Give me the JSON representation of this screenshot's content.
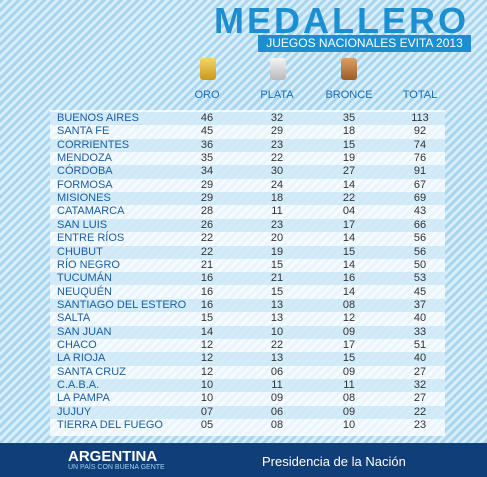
{
  "header": {
    "title": "MEDALLERO",
    "subtitle": "JUEGOS NACIONALES EVITA 2013"
  },
  "table": {
    "columns": [
      "ORO",
      "PLATA",
      "BRONCE",
      "TOTAL"
    ],
    "rows": [
      [
        "BUENOS AIRES",
        "46",
        "32",
        "35",
        "113"
      ],
      [
        "SANTA FE",
        "45",
        "29",
        "18",
        "92"
      ],
      [
        "CORRIENTES",
        "36",
        "23",
        "15",
        "74"
      ],
      [
        "MENDOZA",
        "35",
        "22",
        "19",
        "76"
      ],
      [
        "CÓRDOBA",
        "34",
        "30",
        "27",
        "91"
      ],
      [
        "FORMOSA",
        "29",
        "24",
        "14",
        "67"
      ],
      [
        "MISIONES",
        "29",
        "18",
        "22",
        "69"
      ],
      [
        "CATAMARCA",
        "28",
        "11",
        "04",
        "43"
      ],
      [
        "SAN LUIS",
        "26",
        "23",
        "17",
        "66"
      ],
      [
        "ENTRE RÍOS",
        "22",
        "20",
        "14",
        "56"
      ],
      [
        "CHUBUT",
        "22",
        "19",
        "15",
        "56"
      ],
      [
        "RÍO NEGRO",
        "21",
        "15",
        "14",
        "50"
      ],
      [
        "TUCUMÁN",
        "16",
        "21",
        "16",
        "53"
      ],
      [
        "NEUQUÉN",
        "16",
        "15",
        "14",
        "45"
      ],
      [
        "SANTIAGO DEL ESTERO",
        "16",
        "13",
        "08",
        "37"
      ],
      [
        "SALTA",
        "15",
        "13",
        "12",
        "40"
      ],
      [
        "SAN JUAN",
        "14",
        "10",
        "09",
        "33"
      ],
      [
        "CHACO",
        "12",
        "22",
        "17",
        "51"
      ],
      [
        "LA RIOJA",
        "12",
        "13",
        "15",
        "40"
      ],
      [
        "SANTA CRUZ",
        "12",
        "06",
        "09",
        "27"
      ],
      [
        "C.A.B.A.",
        "10",
        "11",
        "11",
        "32"
      ],
      [
        "LA PAMPA",
        "10",
        "09",
        "08",
        "27"
      ],
      [
        "JUJUY",
        "07",
        "06",
        "09",
        "22"
      ],
      [
        "TIERRA DEL FUEGO",
        "05",
        "08",
        "10",
        "23"
      ]
    ]
  },
  "footer": {
    "brand": "ARGENTINA",
    "tagline": "UN PAÍS CON BUENA GENTE",
    "government": "Presidencia de la Nación"
  }
}
